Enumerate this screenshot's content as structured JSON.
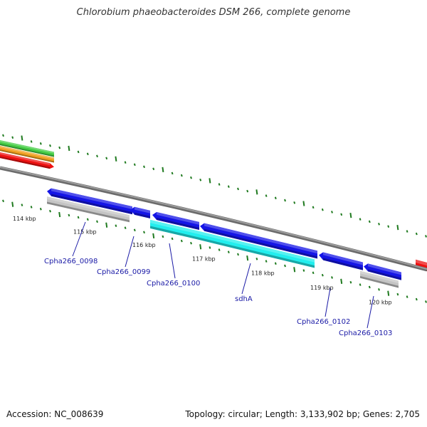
{
  "title": "Chlorobium phaeobacteroides DSM 266, complete genome",
  "footer": {
    "accession": "Accession: NC_008639",
    "stats": "Topology: circular; Length: 3,133,902 bp; Genes: 2,705"
  },
  "colors": {
    "backbone": "#888888",
    "cds": "#1515e6",
    "cds_rna_cyan": "#22eeee",
    "gray_feature": "#c4c4c4",
    "red_feature": "#ee1111",
    "orange_feature": "#f0a020",
    "green_feature": "#44cc44",
    "gc_marks": "#1f7a1f",
    "label": "#1a1aa6"
  },
  "scale": {
    "unit": "kbp",
    "ticks": [
      "114 kbp",
      "115 kbp",
      "116 kbp",
      "117 kbp",
      "118 kbp",
      "119 kbp",
      "120 kbp"
    ]
  },
  "genes": [
    {
      "name": "Cpha266_0098"
    },
    {
      "name": "Cpha266_0099"
    },
    {
      "name": "Cpha266_0100"
    },
    {
      "name": "sdhA"
    },
    {
      "name": "Cpha266_0102"
    },
    {
      "name": "Cpha266_0103"
    }
  ]
}
